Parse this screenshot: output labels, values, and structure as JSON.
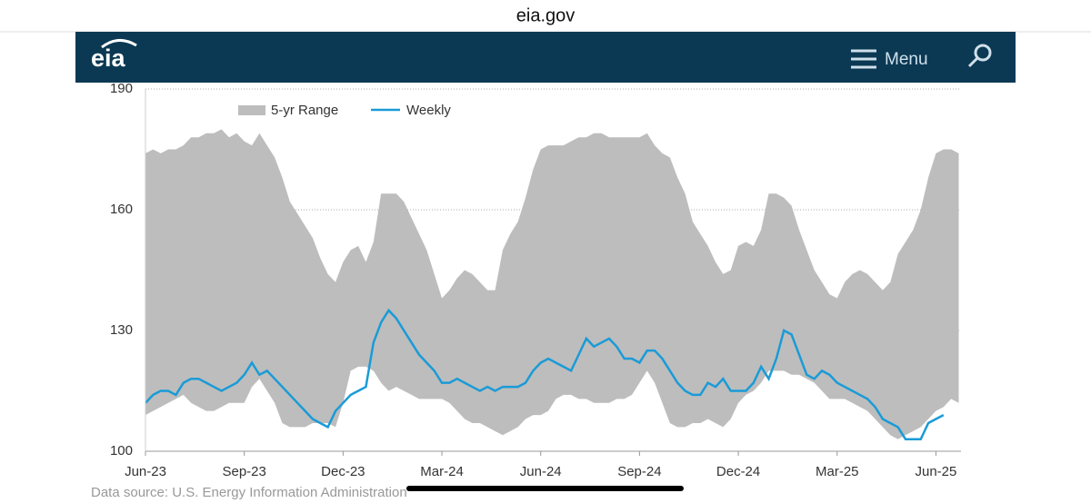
{
  "browser": {
    "url": "eia.gov"
  },
  "header": {
    "logo": "eia",
    "menu": "Menu"
  },
  "chart_data": {
    "type": "range_line",
    "categories": [
      "Jun-23",
      null,
      null,
      null,
      null,
      null,
      null,
      null,
      null,
      null,
      null,
      null,
      null,
      "Sep-23",
      null,
      null,
      null,
      null,
      null,
      null,
      null,
      null,
      null,
      null,
      null,
      null,
      "Dec-23",
      null,
      null,
      null,
      null,
      null,
      null,
      null,
      null,
      null,
      null,
      null,
      null,
      "Mar-24",
      null,
      null,
      null,
      null,
      null,
      null,
      null,
      null,
      null,
      null,
      null,
      null,
      "Jun-24",
      null,
      null,
      null,
      null,
      null,
      null,
      null,
      null,
      null,
      null,
      null,
      null,
      "Sep-24",
      null,
      null,
      null,
      null,
      null,
      null,
      null,
      null,
      null,
      null,
      null,
      null,
      "Dec-24",
      null,
      null,
      null,
      null,
      null,
      null,
      null,
      null,
      null,
      null,
      null,
      null,
      "Mar-25",
      null,
      null,
      null,
      null,
      null,
      null,
      null,
      null,
      null,
      null,
      null,
      null,
      "Jun-25",
      null,
      null,
      null
    ],
    "series": [
      {
        "name": "5-yr Range",
        "color": "#bdbdbd",
        "high": [
          174,
          175,
          174,
          175,
          175,
          176,
          178,
          178,
          179,
          179,
          180,
          178,
          179,
          177,
          176,
          179,
          176,
          173,
          168,
          162,
          159,
          156,
          153,
          148,
          144,
          142,
          147,
          150,
          151,
          147,
          152,
          164,
          164,
          164,
          162,
          158,
          154,
          150,
          144,
          138,
          140,
          143,
          145,
          144,
          142,
          140,
          140,
          150,
          154,
          157,
          163,
          170,
          175,
          176,
          176,
          176,
          177,
          178,
          178,
          179,
          179,
          178,
          178,
          178,
          178,
          178,
          179,
          176,
          174,
          173,
          168,
          164,
          157,
          154,
          151,
          147,
          144,
          145,
          151,
          152,
          151,
          155,
          164,
          164,
          163,
          161,
          155,
          150,
          145,
          142,
          139,
          138,
          142,
          144,
          145,
          144,
          142,
          140,
          142,
          149,
          152,
          155,
          160,
          168,
          174,
          175,
          175,
          174
        ],
        "low": [
          109,
          110,
          111,
          112,
          113,
          114,
          112,
          111,
          110,
          110,
          111,
          112,
          112,
          112,
          116,
          118,
          115,
          112,
          107,
          106,
          106,
          106,
          107,
          107,
          107,
          106,
          112,
          120,
          121,
          121,
          120,
          117,
          115,
          116,
          115,
          114,
          113,
          113,
          113,
          113,
          112,
          110,
          108,
          107,
          107,
          106,
          105,
          104,
          105,
          106,
          108,
          109,
          109,
          110,
          113,
          114,
          114,
          113,
          113,
          112,
          112,
          112,
          113,
          113,
          114,
          117,
          120,
          117,
          112,
          107,
          106,
          106,
          107,
          107,
          108,
          107,
          106,
          108,
          112,
          114,
          115,
          117,
          120,
          120,
          120,
          119,
          119,
          118,
          117,
          115,
          113,
          113,
          113,
          112,
          111,
          110,
          108,
          106,
          104,
          103,
          104,
          105,
          106,
          108,
          110,
          111,
          113,
          112
        ]
      },
      {
        "name": "Weekly",
        "color": "#1a9bd7",
        "values": [
          112,
          114,
          115,
          115,
          114,
          117,
          118,
          118,
          117,
          116,
          115,
          116,
          117,
          119,
          122,
          119,
          120,
          118,
          116,
          114,
          112,
          110,
          108,
          107,
          106,
          110,
          112,
          114,
          115,
          116,
          127,
          132,
          135,
          133,
          130,
          127,
          124,
          122,
          120,
          117,
          117,
          118,
          117,
          116,
          115,
          116,
          115,
          116,
          116,
          116,
          117,
          120,
          122,
          123,
          122,
          121,
          120,
          124,
          128,
          126,
          127,
          128,
          126,
          123,
          123,
          122,
          125,
          125,
          123,
          120,
          117,
          115,
          114,
          114,
          117,
          116,
          118,
          115,
          115,
          115,
          117,
          121,
          118,
          123,
          130,
          129,
          124,
          119,
          118,
          120,
          119,
          117,
          116,
          115,
          114,
          113,
          111,
          108,
          107,
          106,
          103,
          103,
          103,
          107,
          108,
          109,
          null,
          null
        ]
      }
    ],
    "ylim": [
      100,
      190
    ],
    "yticks": [
      100,
      130,
      160,
      190
    ],
    "grid": true
  },
  "footer": {
    "source": "Data source: U.S. Energy Information Administration"
  }
}
